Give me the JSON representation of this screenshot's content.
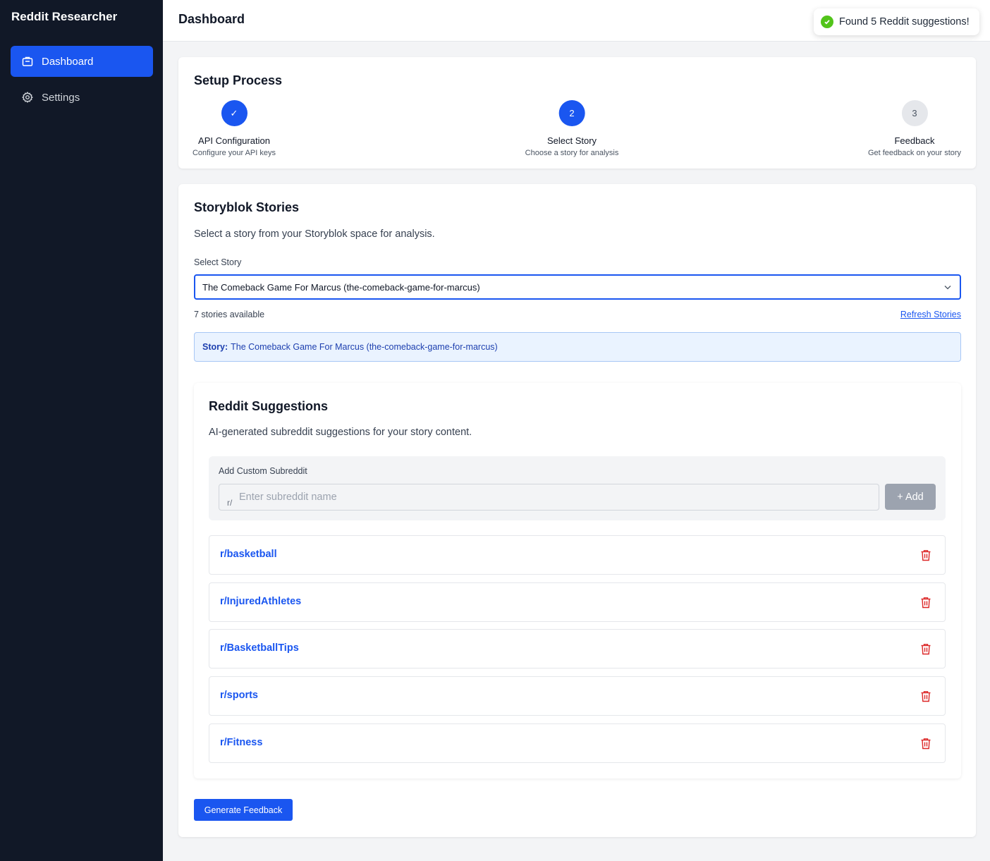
{
  "app": {
    "title": "Reddit Researcher"
  },
  "sidebar": {
    "items": [
      {
        "label": "Dashboard",
        "icon": "dashboard-icon",
        "active": true
      },
      {
        "label": "Settings",
        "icon": "gear-icon",
        "active": false
      }
    ]
  },
  "header": {
    "title": "Dashboard"
  },
  "toast": {
    "message": "Found 5 Reddit suggestions!",
    "icon": "check-circle-icon",
    "color": "#52c41a"
  },
  "setup": {
    "title": "Setup Process",
    "steps": [
      {
        "marker": "✓",
        "label": "API Configuration",
        "description": "Configure your API keys",
        "status": "done"
      },
      {
        "marker": "2",
        "label": "Select Story",
        "description": "Choose a story for analysis",
        "status": "current"
      },
      {
        "marker": "3",
        "label": "Feedback",
        "description": "Get feedback on your story",
        "status": "pending"
      }
    ]
  },
  "stories": {
    "title": "Storyblok Stories",
    "description": "Select a story from your Storyblok space for analysis.",
    "select_label": "Select Story",
    "selected_value": "The Comeback Game For Marcus (the-comeback-game-for-marcus)",
    "count_text": "7 stories available",
    "refresh_label": "Refresh Stories",
    "info_label": "Story:",
    "info_value": "The Comeback Game For Marcus (the-comeback-game-for-marcus)"
  },
  "suggestions": {
    "title": "Reddit Suggestions",
    "description": "AI-generated subreddit suggestions for your story content.",
    "custom_label": "Add Custom Subreddit",
    "prefix": "r/",
    "placeholder": "Enter subreddit name",
    "add_label": "+ Add",
    "items": [
      {
        "name": "r/basketball"
      },
      {
        "name": "r/InjuredAthletes"
      },
      {
        "name": "r/BasketballTips"
      },
      {
        "name": "r/sports"
      },
      {
        "name": "r/Fitness"
      }
    ]
  },
  "actions": {
    "generate_label": "Generate Feedback"
  },
  "colors": {
    "accent": "#1a56f0",
    "sidebar_bg": "#111827",
    "danger": "#dc2626",
    "info_bg": "#eaf3ff"
  }
}
